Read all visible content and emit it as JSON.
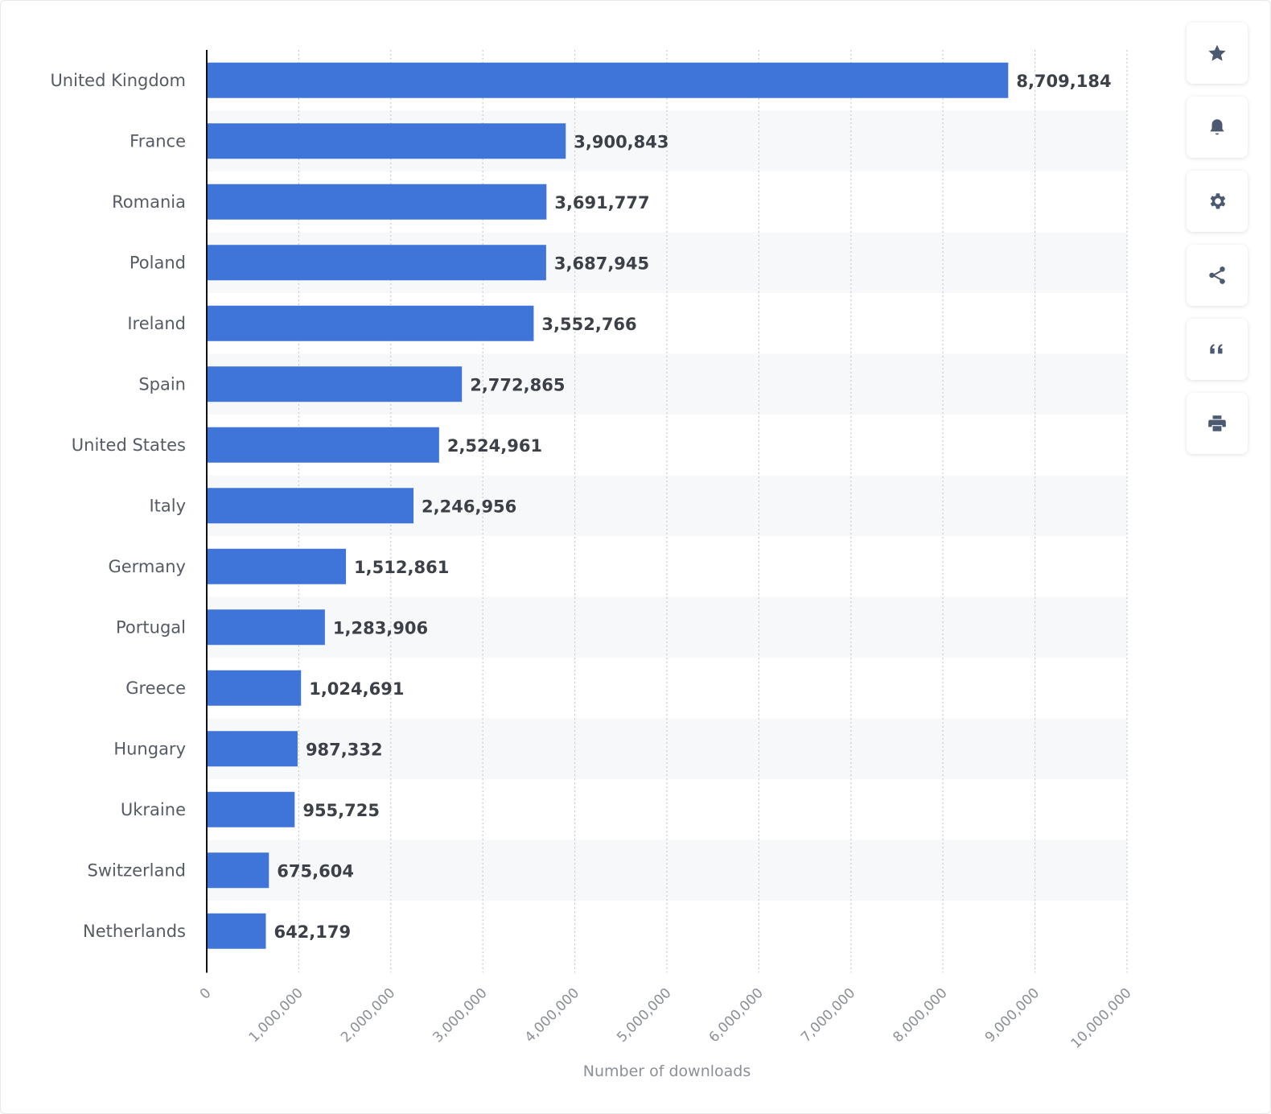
{
  "chart_data": {
    "type": "bar",
    "orientation": "horizontal",
    "categories": [
      "United Kingdom",
      "France",
      "Romania",
      "Poland",
      "Ireland",
      "Spain",
      "United States",
      "Italy",
      "Germany",
      "Portugal",
      "Greece",
      "Hungary",
      "Ukraine",
      "Switzerland",
      "Netherlands"
    ],
    "values": [
      8709184,
      3900843,
      3691777,
      3687945,
      3552766,
      2772865,
      2524961,
      2246956,
      1512861,
      1283906,
      1024691,
      987332,
      955725,
      675604,
      642179
    ],
    "value_labels": [
      "8,709,184",
      "3,900,843",
      "3,691,777",
      "3,687,945",
      "3,552,766",
      "2,772,865",
      "2,524,961",
      "2,246,956",
      "1,512,861",
      "1,283,906",
      "1,024,691",
      "987,332",
      "955,725",
      "675,604",
      "642,179"
    ],
    "xlim": [
      0,
      10000000
    ],
    "x_ticks": [
      0,
      1000000,
      2000000,
      3000000,
      4000000,
      5000000,
      6000000,
      7000000,
      8000000,
      9000000,
      10000000
    ],
    "x_tick_labels": [
      "0",
      "1,000,000",
      "2,000,000",
      "3,000,000",
      "4,000,000",
      "5,000,000",
      "6,000,000",
      "7,000,000",
      "8,000,000",
      "9,000,000",
      "10,000,000"
    ],
    "xlabel": "Number of downloads",
    "ylabel": "",
    "title": "",
    "grid": "vertical dotted",
    "bar_color": "#3f74d8"
  },
  "toolbar": {
    "icons": [
      "star-icon",
      "bell-icon",
      "gear-icon",
      "share-icon",
      "quote-icon",
      "print-icon"
    ]
  }
}
